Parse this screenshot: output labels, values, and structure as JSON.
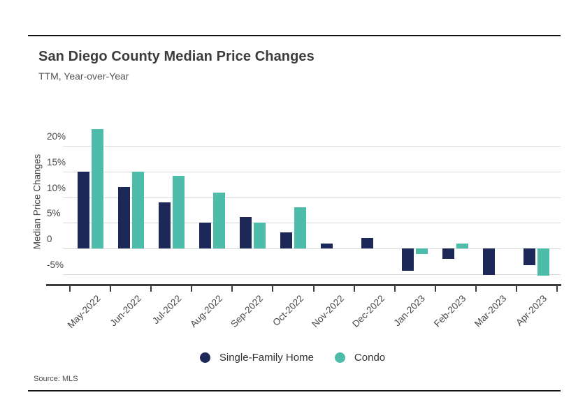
{
  "page": {
    "title": "San Diego County Median Price Changes",
    "subtitle": "TTM, Year-over-Year",
    "source_label": "Source: MLS"
  },
  "chart_data": {
    "type": "bar",
    "title": "San Diego County Median Price Changes",
    "subtitle": "TTM, Year-over-Year",
    "xlabel": "",
    "ylabel": "Median Price Changes",
    "categories": [
      "May-2022",
      "Jun-2022",
      "Jul-2022",
      "Aug-2022",
      "Sep-2022",
      "Oct-2022",
      "Nov-2022",
      "Dec-2022",
      "Jan-2023",
      "Feb-2023",
      "Mar-2023",
      "Apr-2023"
    ],
    "series": [
      {
        "name": "Single-Family Home",
        "color": "#1c2858",
        "values": [
          15.0,
          12.0,
          9.0,
          5.0,
          6.1,
          3.1,
          1.0,
          2.0,
          -4.3,
          -2.1,
          -5.2,
          -3.2
        ]
      },
      {
        "name": "Condo",
        "color": "#4ebcab",
        "values": [
          23.3,
          15.0,
          14.2,
          10.9,
          5.0,
          8.1,
          0,
          0,
          -1.1,
          0.9,
          0,
          -5.3
        ]
      }
    ],
    "y_ticks": [
      {
        "label": "20%",
        "value": 20
      },
      {
        "label": "15%",
        "value": 15
      },
      {
        "label": "10%",
        "value": 10
      },
      {
        "label": "5%",
        "value": 5
      },
      {
        "label": "0",
        "value": 0
      },
      {
        "label": "-5%",
        "value": -5
      }
    ],
    "ylim": [
      -7,
      25
    ],
    "grid": true,
    "legend_position": "bottom",
    "source": "Source: MLS"
  },
  "colors": {
    "single_family": "#1c2858",
    "condo": "#4ebcab",
    "gridline": "#d9d9d9",
    "axis": "#3d3d3d",
    "frame_rule": "#111111"
  }
}
